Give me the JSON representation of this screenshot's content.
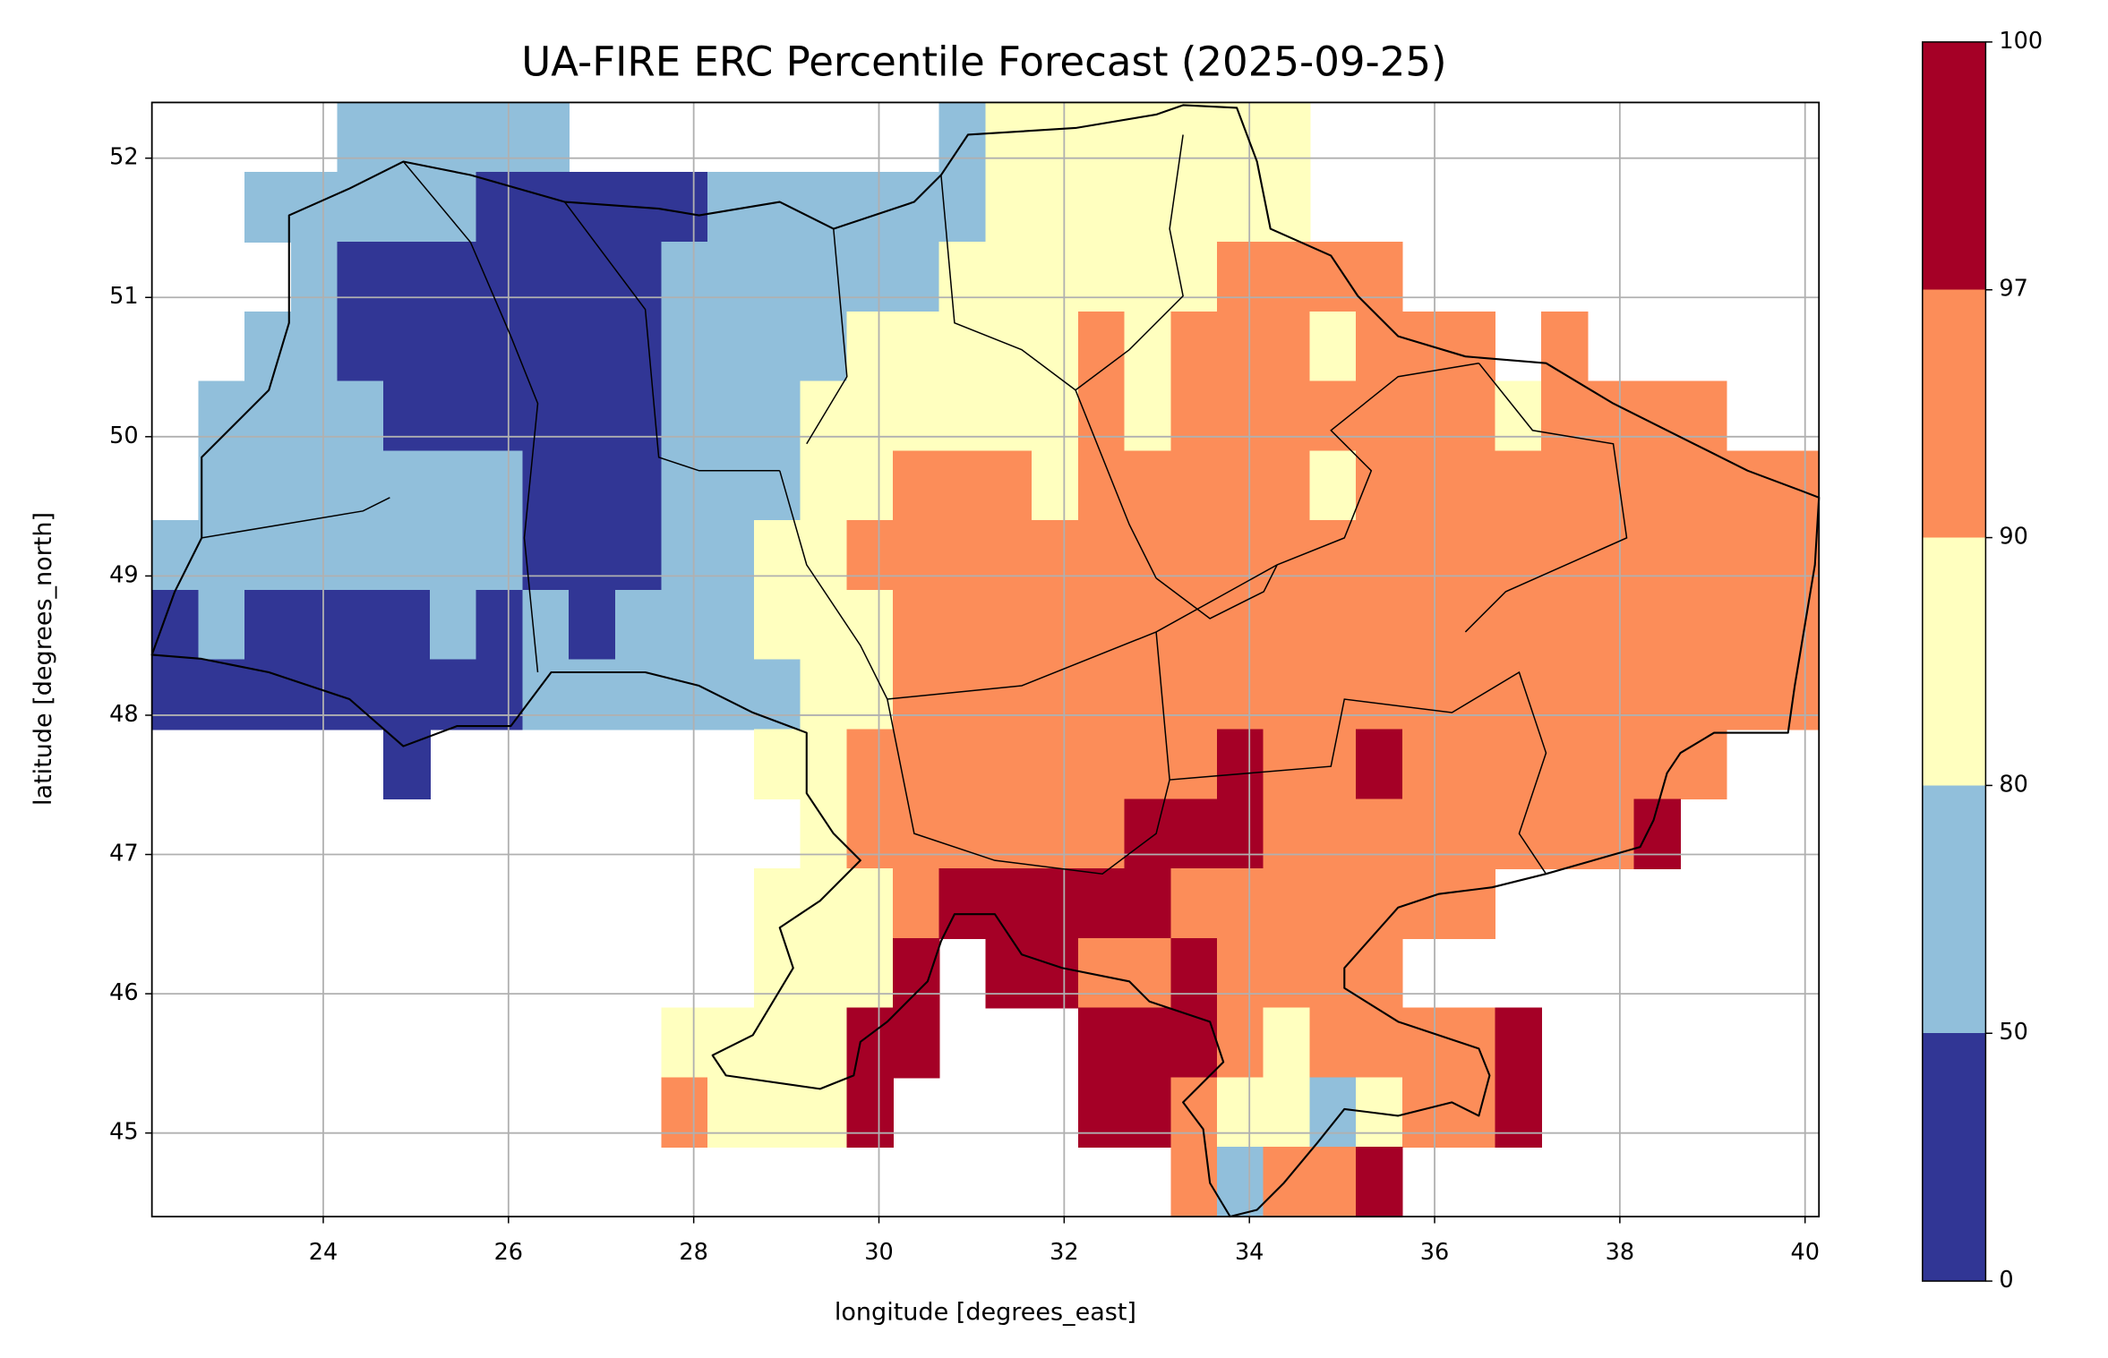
{
  "chart_data": {
    "type": "heatmap",
    "title": "UA-FIRE ERC Percentile Forecast (2025-09-25)",
    "x_label": "longitude [degrees_east]",
    "y_label": "latitude [degrees_north]",
    "xlim": [
      22.15,
      40.15
    ],
    "ylim": [
      44.4,
      52.4
    ],
    "xticks": [
      24,
      26,
      28,
      30,
      32,
      34,
      36,
      38,
      40
    ],
    "yticks": [
      45,
      46,
      47,
      48,
      49,
      50,
      51,
      52
    ],
    "grid": true,
    "x": [
      22.4,
      22.9,
      23.4,
      23.9,
      24.4,
      24.9,
      25.4,
      25.9,
      26.4,
      26.9,
      27.4,
      27.9,
      28.4,
      28.9,
      29.4,
      29.9,
      30.4,
      30.9,
      31.4,
      31.9,
      32.4,
      32.9,
      33.4,
      33.9,
      34.4,
      34.9,
      35.4,
      35.9,
      36.4,
      36.9,
      37.4,
      37.9,
      38.4,
      38.9,
      39.4,
      39.9
    ],
    "y": [
      52.15,
      51.65,
      51.15,
      50.65,
      50.15,
      49.65,
      49.15,
      48.65,
      48.15,
      47.65,
      47.15,
      46.65,
      46.15,
      45.65,
      45.15,
      44.65
    ],
    "z": [
      [
        null,
        null,
        null,
        null,
        65,
        65,
        65,
        65,
        65,
        null,
        null,
        null,
        null,
        null,
        null,
        null,
        null,
        65,
        85,
        85,
        85,
        85,
        85,
        85,
        85,
        null,
        null,
        null,
        null,
        null,
        null,
        null,
        null,
        null,
        null,
        null
      ],
      [
        null,
        null,
        65,
        65,
        65,
        65,
        65,
        25,
        25,
        25,
        25,
        25,
        65,
        65,
        65,
        65,
        65,
        65,
        85,
        85,
        85,
        85,
        85,
        85,
        85,
        null,
        null,
        null,
        null,
        null,
        null,
        null,
        null,
        null,
        null,
        null
      ],
      [
        null,
        null,
        null,
        65,
        25,
        25,
        25,
        25,
        25,
        25,
        25,
        65,
        65,
        65,
        65,
        65,
        65,
        85,
        85,
        85,
        85,
        85,
        85,
        93,
        93,
        93,
        93,
        null,
        null,
        null,
        null,
        null,
        null,
        null,
        null,
        null
      ],
      [
        null,
        null,
        65,
        65,
        25,
        25,
        25,
        25,
        25,
        25,
        25,
        65,
        65,
        65,
        65,
        85,
        85,
        85,
        85,
        85,
        93,
        85,
        93,
        93,
        93,
        85,
        93,
        93,
        93,
        null,
        93,
        null,
        null,
        null,
        null,
        null
      ],
      [
        null,
        65,
        65,
        65,
        65,
        25,
        25,
        25,
        25,
        25,
        25,
        65,
        65,
        65,
        85,
        85,
        85,
        85,
        85,
        85,
        93,
        85,
        93,
        93,
        93,
        93,
        93,
        93,
        93,
        85,
        93,
        93,
        93,
        93,
        null,
        null
      ],
      [
        null,
        65,
        65,
        65,
        65,
        65,
        65,
        65,
        25,
        25,
        25,
        65,
        65,
        65,
        85,
        85,
        93,
        93,
        93,
        85,
        93,
        93,
        93,
        93,
        93,
        85,
        93,
        93,
        93,
        93,
        93,
        93,
        93,
        93,
        93,
        93
      ],
      [
        65,
        65,
        65,
        65,
        65,
        65,
        65,
        65,
        25,
        25,
        25,
        65,
        65,
        85,
        85,
        93,
        93,
        93,
        93,
        93,
        93,
        93,
        93,
        93,
        93,
        93,
        93,
        93,
        93,
        93,
        93,
        93,
        93,
        93,
        93,
        93
      ],
      [
        25,
        65,
        25,
        25,
        25,
        25,
        65,
        25,
        65,
        25,
        65,
        65,
        65,
        85,
        85,
        85,
        93,
        93,
        93,
        93,
        93,
        93,
        93,
        93,
        93,
        93,
        93,
        93,
        93,
        93,
        93,
        93,
        93,
        93,
        93,
        93
      ],
      [
        25,
        25,
        25,
        25,
        25,
        25,
        25,
        25,
        65,
        65,
        65,
        65,
        65,
        65,
        85,
        85,
        93,
        93,
        93,
        93,
        93,
        93,
        93,
        93,
        93,
        93,
        93,
        93,
        93,
        93,
        93,
        93,
        93,
        93,
        93,
        93
      ],
      [
        null,
        null,
        null,
        null,
        null,
        25,
        null,
        null,
        null,
        null,
        null,
        null,
        null,
        85,
        85,
        93,
        93,
        93,
        93,
        93,
        93,
        93,
        93,
        98,
        93,
        93,
        98,
        93,
        93,
        93,
        93,
        93,
        93,
        93,
        null,
        null
      ],
      [
        null,
        null,
        null,
        null,
        null,
        null,
        null,
        null,
        null,
        null,
        null,
        null,
        null,
        null,
        85,
        93,
        93,
        93,
        93,
        93,
        93,
        98,
        98,
        98,
        93,
        93,
        93,
        93,
        93,
        93,
        93,
        93,
        98,
        null,
        null,
        null
      ],
      [
        null,
        null,
        null,
        null,
        null,
        null,
        null,
        null,
        null,
        null,
        null,
        null,
        null,
        85,
        85,
        85,
        93,
        98,
        98,
        98,
        98,
        98,
        93,
        93,
        93,
        93,
        93,
        93,
        93,
        null,
        null,
        null,
        null,
        null,
        null,
        null
      ],
      [
        null,
        null,
        null,
        null,
        null,
        null,
        null,
        null,
        null,
        null,
        null,
        null,
        null,
        85,
        85,
        85,
        98,
        null,
        98,
        98,
        93,
        93,
        98,
        93,
        93,
        93,
        93,
        null,
        null,
        null,
        null,
        null,
        null,
        null,
        null,
        null
      ],
      [
        null,
        null,
        null,
        null,
        null,
        null,
        null,
        null,
        null,
        null,
        null,
        85,
        85,
        85,
        85,
        98,
        98,
        null,
        null,
        null,
        98,
        98,
        98,
        93,
        85,
        93,
        93,
        93,
        93,
        98,
        null,
        null,
        null,
        null,
        null,
        null
      ],
      [
        null,
        null,
        null,
        null,
        null,
        null,
        null,
        null,
        null,
        null,
        null,
        93,
        85,
        85,
        85,
        98,
        null,
        null,
        null,
        null,
        98,
        98,
        93,
        85,
        85,
        65,
        85,
        93,
        93,
        98,
        null,
        null,
        null,
        null,
        null,
        null
      ],
      [
        null,
        null,
        null,
        null,
        null,
        null,
        null,
        null,
        null,
        null,
        null,
        null,
        null,
        null,
        null,
        null,
        null,
        null,
        null,
        null,
        null,
        null,
        93,
        65,
        93,
        93,
        98,
        null,
        null,
        null,
        null,
        null,
        null,
        null,
        null,
        null
      ]
    ],
    "colorbar": {
      "boundaries": [
        0,
        50,
        80,
        90,
        97,
        100
      ],
      "colors": [
        "#313695",
        "#91bfdb",
        "#ffffbf",
        "#fc8d59",
        "#a50026"
      ]
    }
  }
}
